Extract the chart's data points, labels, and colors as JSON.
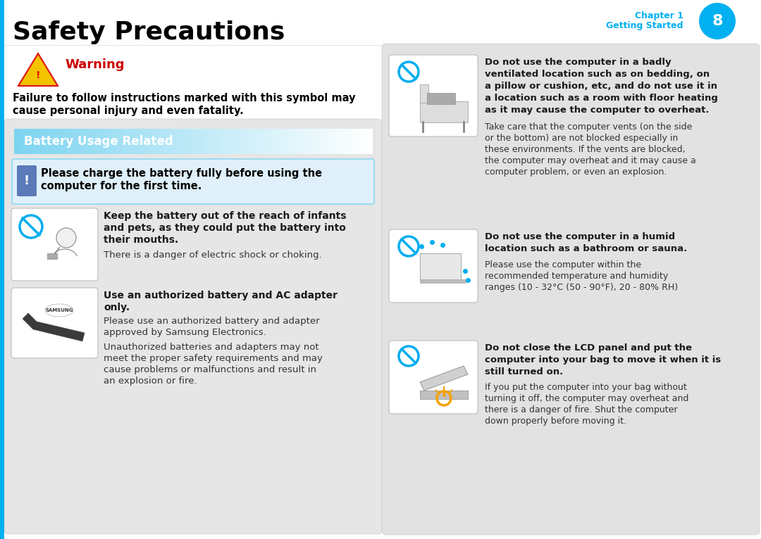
{
  "bg_color": "#ffffff",
  "title": "Safety Precautions",
  "title_fontsize": 26,
  "accent_blue": "#00b0f0",
  "chapter_text": "Chapter 1",
  "getting_started": "Getting Started",
  "page_num": "8",
  "warning_color": "#cc0000",
  "warning_title": "Warning",
  "warning_body1": "Failure to follow instructions marked with this symbol may",
  "warning_body2": "cause personal injury and even fatality.",
  "battery_header": "Battery Usage Related",
  "battery_header_bg": "#7ed4f0",
  "note_box_bg": "#dff0fa",
  "note_box_border": "#7ed4f0",
  "note_icon_bg": "#5a7ab8",
  "note_text1": "Please charge the battery fully before using the",
  "note_text2": "computer for the first time.",
  "item1_bold1": "Keep the battery out of the reach of infants",
  "item1_bold2": "and pets, as they could put the battery into",
  "item1_bold3": "their mouths.",
  "item1_normal": "There is a danger of electric shock or choking.",
  "item2_bold1": "Use an authorized battery and AC adapter",
  "item2_bold2": "only.",
  "item2_n1": "Please use an authorized battery and adapter",
  "item2_n2": "approved by Samsung Electronics.",
  "item2_n3": "Unauthorized batteries and adapters may not",
  "item2_n4": "meet the proper safety requirements and may",
  "item2_n5": "cause problems or malfunctions and result in",
  "item2_n6": "an explosion or fire.",
  "r1b1": "Do not use the computer in a badly",
  "r1b2": "ventilated location such as on bedding, on",
  "r1b3": "a pillow or cushion, etc, and do not use it in",
  "r1b4": "a location such as a room with floor heating",
  "r1b5": "as it may cause the computer to overheat.",
  "r1n1": "Take care that the computer vents (on the side",
  "r1n2": "or the bottom) are not blocked especially in",
  "r1n3": "these environments. If the vents are blocked,",
  "r1n4": "the computer may overheat and it may cause a",
  "r1n5": "computer problem, or even an explosion.",
  "r2b1": "Do not use the computer in a humid",
  "r2b2": "location such as a bathroom or sauna.",
  "r2n1": "Please use the computer within the",
  "r2n2": "recommended temperature and humidity",
  "r2n3": "ranges (10 - 32°C (50 - 90°F), 20 - 80% RH)",
  "r3b1": "Do not close the LCD panel and put the",
  "r3b2": "computer into your bag to move it when it is",
  "r3b3": "still turned on.",
  "r3n1": "If you put the computer into your bag without",
  "r3n2": "turning it off, the computer may overheat and",
  "r3n3": "there is a danger of fire. Shut the computer",
  "r3n4": "down properly before moving it.",
  "left_panel_bg": "#e6e6e6",
  "right_panel_bg": "#e2e2e2",
  "no_symbol_color": "#00adef",
  "item_box_bg": "#ffffff",
  "item_box_border": "#bbbbbb",
  "bold_color": "#1a1a1a",
  "normal_color": "#333333",
  "tri_fill": "#f5c200",
  "tri_edge": "#dd1111"
}
